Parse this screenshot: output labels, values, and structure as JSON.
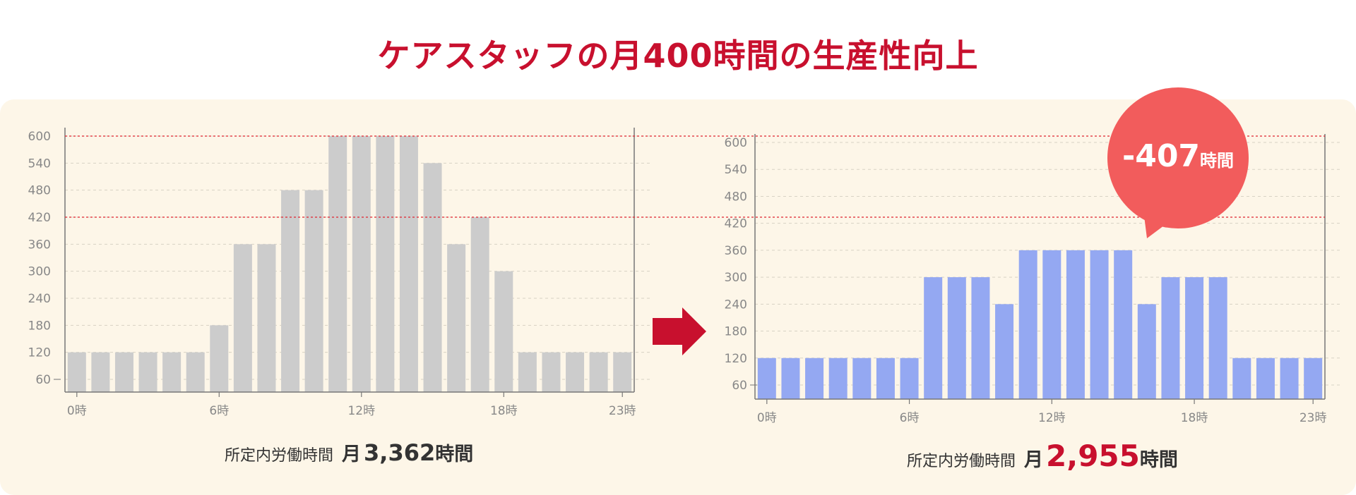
{
  "title": "ケアスタッフの月400時間の生産性向上",
  "reduction_badge": {
    "value": "-407",
    "unit": "時間"
  },
  "colors": {
    "title": "#c8102e",
    "before_bar": "#cccccc",
    "after_bar": "#94a8f2",
    "badge": "#f25c5c",
    "arrow": "#c8102e",
    "reference_line": "#e0242f",
    "panel": "#fdf6e8"
  },
  "chart_data": [
    {
      "type": "bar",
      "name": "before",
      "categories": [
        "0時",
        "1時",
        "2時",
        "3時",
        "4時",
        "5時",
        "6時",
        "7時",
        "8時",
        "9時",
        "10時",
        "11時",
        "12時",
        "13時",
        "14時",
        "15時",
        "16時",
        "17時",
        "18時",
        "19時",
        "20時",
        "21時",
        "22時",
        "23時"
      ],
      "visible_x_ticks": [
        "0時",
        "6時",
        "12時",
        "18時",
        "23時"
      ],
      "values": [
        120,
        120,
        120,
        120,
        120,
        120,
        180,
        360,
        360,
        480,
        480,
        600,
        600,
        600,
        600,
        540,
        360,
        420,
        300,
        120,
        120,
        120,
        120,
        120
      ],
      "y_ticks": [
        60,
        120,
        180,
        240,
        300,
        360,
        420,
        480,
        540,
        600
      ],
      "ylim": [
        0,
        600
      ],
      "reference_lines": [
        600,
        420
      ],
      "grid": true,
      "total": {
        "label": "所定内労働時間",
        "month": "月",
        "value": "3,362",
        "unit": "時間"
      }
    },
    {
      "type": "bar",
      "name": "after",
      "categories": [
        "0時",
        "1時",
        "2時",
        "3時",
        "4時",
        "5時",
        "6時",
        "7時",
        "8時",
        "9時",
        "10時",
        "11時",
        "12時",
        "13時",
        "14時",
        "15時",
        "16時",
        "17時",
        "18時",
        "19時",
        "20時",
        "21時",
        "22時",
        "23時"
      ],
      "visible_x_ticks": [
        "0時",
        "6時",
        "12時",
        "18時",
        "23時"
      ],
      "values": [
        120,
        120,
        120,
        120,
        120,
        120,
        120,
        300,
        300,
        300,
        240,
        360,
        360,
        360,
        360,
        360,
        240,
        300,
        300,
        300,
        120,
        120,
        120,
        120
      ],
      "y_ticks": [
        60,
        120,
        180,
        240,
        300,
        360,
        420,
        480,
        540,
        600
      ],
      "ylim": [
        0,
        600
      ],
      "reference_lines": [
        600,
        420
      ],
      "grid": true,
      "total": {
        "label": "所定内労働時間",
        "month": "月",
        "value": "2,955",
        "unit": "時間"
      }
    }
  ]
}
